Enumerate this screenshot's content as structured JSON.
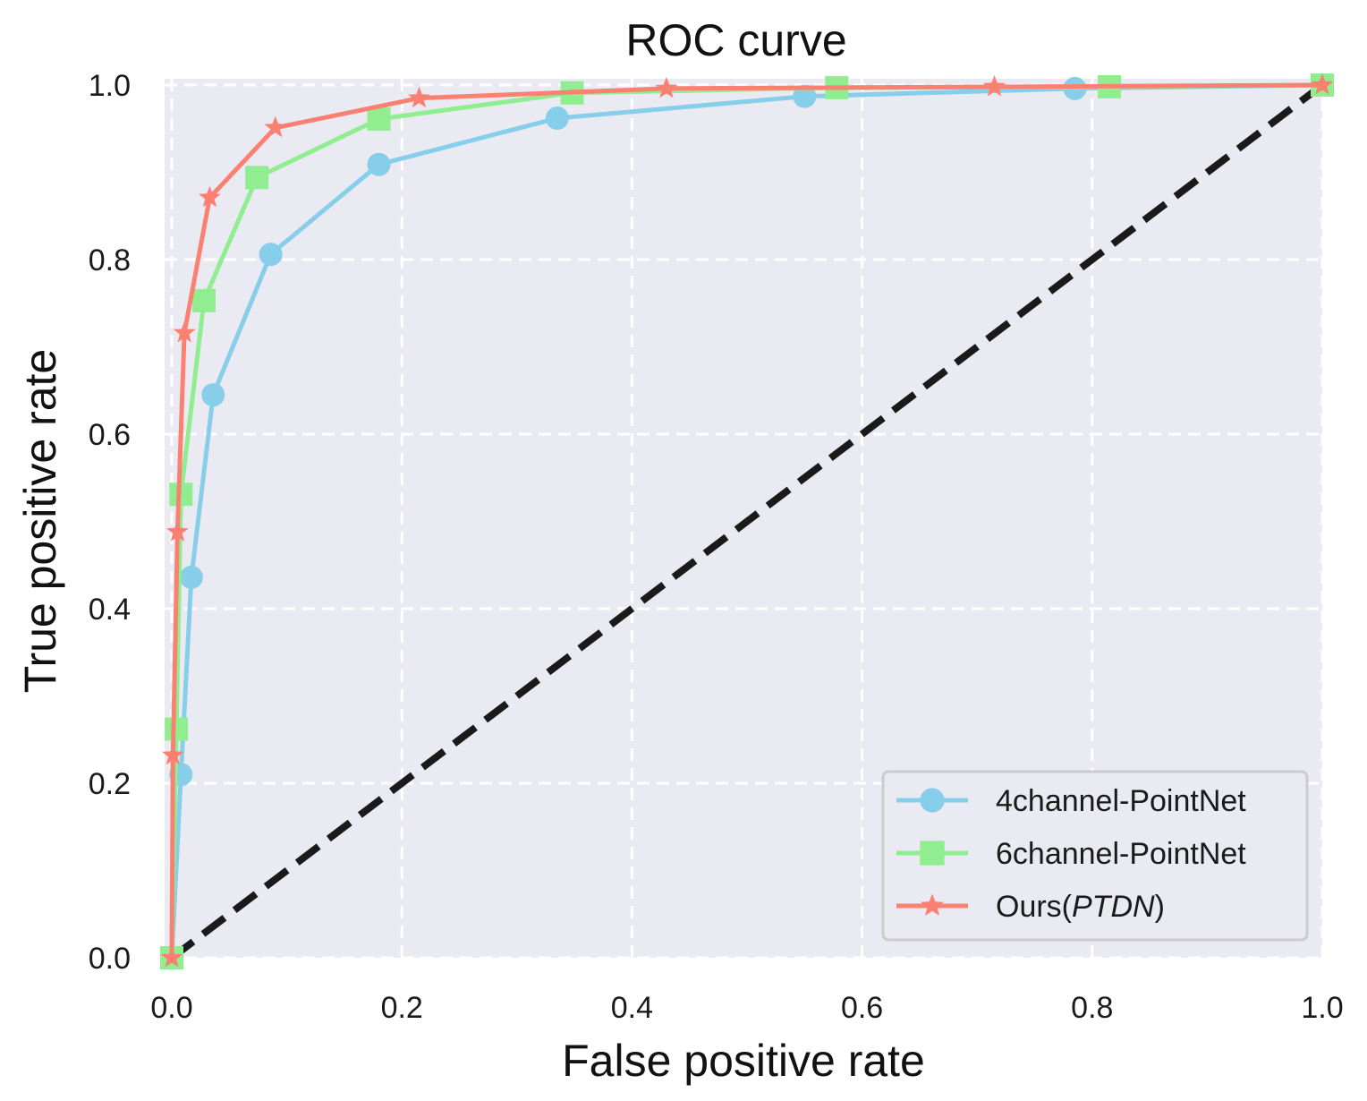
{
  "chart_data": {
    "type": "line",
    "title": "ROC curve",
    "xlabel": "False positive rate",
    "ylabel": "True positive rate",
    "xlim": [
      0.0,
      1.0
    ],
    "ylim": [
      0.0,
      1.0
    ],
    "x_ticks": [
      "0.0",
      "0.2",
      "0.4",
      "0.6",
      "0.8",
      "1.0"
    ],
    "y_ticks": [
      "0.0",
      "0.2",
      "0.4",
      "0.6",
      "0.8",
      "1.0"
    ],
    "grid": true,
    "legend_position": "lower-right",
    "colors": {
      "background": "#eaeaf2",
      "grid": "#ffffff",
      "diagonal": "#1a1a1a"
    },
    "series": [
      {
        "name": "4channel-PointNet",
        "color": "#87ceeb",
        "marker": "circle",
        "x": [
          0.0,
          0.008,
          0.017,
          0.036,
          0.086,
          0.18,
          0.335,
          0.55,
          0.785,
          1.0
        ],
        "y": [
          0.0,
          0.21,
          0.436,
          0.645,
          0.806,
          0.909,
          0.962,
          0.987,
          0.996,
          1.0
        ]
      },
      {
        "name": "6channel-PointNet",
        "color": "#90ee90",
        "marker": "square",
        "x": [
          0.0,
          0.004,
          0.008,
          0.028,
          0.074,
          0.18,
          0.348,
          0.578,
          0.815,
          1.0
        ],
        "y": [
          0.0,
          0.262,
          0.531,
          0.753,
          0.894,
          0.961,
          0.991,
          0.997,
          0.998,
          1.0
        ]
      },
      {
        "name": "Ours(",
        "name_italic": "PTDN",
        "name_suffix": ")",
        "color": "#fa8072",
        "marker": "star",
        "x": [
          0.0,
          0.001,
          0.005,
          0.011,
          0.033,
          0.09,
          0.215,
          0.43,
          0.715,
          1.0
        ],
        "y": [
          0.0,
          0.232,
          0.488,
          0.716,
          0.871,
          0.951,
          0.985,
          0.996,
          0.998,
          1.0
        ]
      }
    ],
    "diagonal": {
      "x": [
        0.0,
        1.0
      ],
      "y": [
        0.0,
        1.0
      ],
      "style": "dashed"
    }
  }
}
